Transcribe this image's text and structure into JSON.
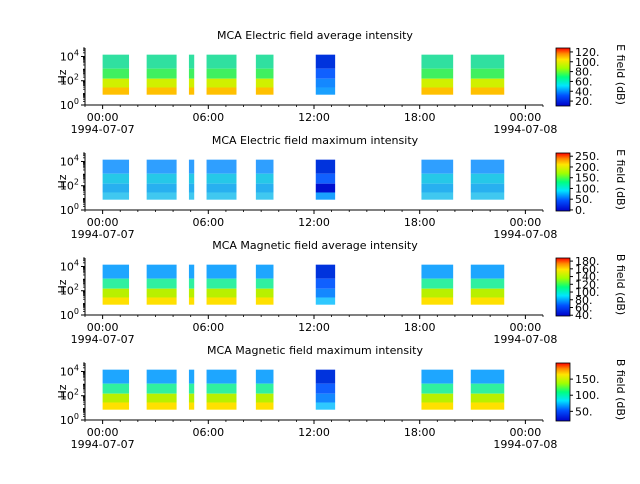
{
  "chart_data": [
    {
      "type": "heatmap",
      "title": "MCA  Electric field average intensity",
      "ylabel": "Hz",
      "yscale": "log",
      "ylim": [
        1,
        50000
      ],
      "y_ticks": [
        {
          "exp": "0"
        },
        {
          "exp": "2"
        },
        {
          "exp": "4"
        }
      ],
      "x_ticks": [
        {
          "hour": 0,
          "label": "00:00",
          "sub": "1994-07-07"
        },
        {
          "hour": 6,
          "label": "06:00",
          "sub": ""
        },
        {
          "hour": 12,
          "label": "12:00",
          "sub": ""
        },
        {
          "hour": 18,
          "label": "18:00",
          "sub": ""
        },
        {
          "hour": 24,
          "label": "00:00",
          "sub": "1994-07-08"
        }
      ],
      "xlim": [
        "1994-07-06T23:00",
        "1994-07-08T01:00"
      ],
      "colorbar": {
        "label": "E field (dB)",
        "range": [
          10,
          128
        ],
        "ticks": [
          "20.",
          "40.",
          "60.",
          "80.",
          "100.",
          "120."
        ],
        "tick_values": [
          20,
          40,
          60,
          80,
          100,
          120
        ]
      },
      "coverage_hours": [
        [
          0,
          1.5
        ],
        [
          2.5,
          4.2
        ],
        [
          4.9,
          5.2
        ],
        [
          5.9,
          7.6
        ],
        [
          8.7,
          9.7
        ],
        [
          12.1,
          13.2
        ],
        [
          18.1,
          19.9
        ],
        [
          20.9,
          22.8
        ]
      ]
    },
    {
      "type": "heatmap",
      "title": "MCA  Electric field maximum intensity",
      "ylabel": "Hz",
      "yscale": "log",
      "ylim": [
        1,
        50000
      ],
      "y_ticks": [
        {
          "exp": "0"
        },
        {
          "exp": "2"
        },
        {
          "exp": "4"
        }
      ],
      "x_ticks": [
        {
          "hour": 0,
          "label": "00:00",
          "sub": "1994-07-07"
        },
        {
          "hour": 6,
          "label": "06:00",
          "sub": ""
        },
        {
          "hour": 12,
          "label": "12:00",
          "sub": ""
        },
        {
          "hour": 18,
          "label": "18:00",
          "sub": ""
        },
        {
          "hour": 24,
          "label": "00:00",
          "sub": "1994-07-08"
        }
      ],
      "xlim": [
        "1994-07-06T23:00",
        "1994-07-08T01:00"
      ],
      "colorbar": {
        "label": "E field (dB)",
        "range": [
          -5,
          265
        ],
        "ticks": [
          "0.",
          "50.",
          "100.",
          "150.",
          "200.",
          "250."
        ],
        "tick_values": [
          0,
          50,
          100,
          150,
          200,
          250
        ]
      },
      "coverage_hours": [
        [
          0,
          1.5
        ],
        [
          2.5,
          4.2
        ],
        [
          4.9,
          5.2
        ],
        [
          5.9,
          7.6
        ],
        [
          8.7,
          9.7
        ],
        [
          12.1,
          13.2
        ],
        [
          18.1,
          19.9
        ],
        [
          20.9,
          22.8
        ]
      ]
    },
    {
      "type": "heatmap",
      "title": "MCA  Magnetic field average intensity",
      "ylabel": "Hz",
      "yscale": "log",
      "ylim": [
        1,
        50000
      ],
      "y_ticks": [
        {
          "exp": "0"
        },
        {
          "exp": "2"
        },
        {
          "exp": "4"
        }
      ],
      "x_ticks": [
        {
          "hour": 0,
          "label": "00:00",
          "sub": "1994-07-07"
        },
        {
          "hour": 6,
          "label": "06:00",
          "sub": ""
        },
        {
          "hour": 12,
          "label": "12:00",
          "sub": ""
        },
        {
          "hour": 18,
          "label": "18:00",
          "sub": ""
        },
        {
          "hour": 24,
          "label": "00:00",
          "sub": "1994-07-08"
        }
      ],
      "xlim": [
        "1994-07-06T23:00",
        "1994-07-08T01:00"
      ],
      "colorbar": {
        "label": "B field (dB)",
        "range": [
          38,
          188
        ],
        "ticks": [
          "40.",
          "60.",
          "80.",
          "100.",
          "120.",
          "140.",
          "160.",
          "180."
        ],
        "tick_values": [
          40,
          60,
          80,
          100,
          120,
          140,
          160,
          180
        ]
      },
      "coverage_hours": [
        [
          0,
          1.5
        ],
        [
          2.5,
          4.2
        ],
        [
          4.9,
          5.2
        ],
        [
          5.9,
          7.6
        ],
        [
          8.7,
          9.7
        ],
        [
          12.1,
          13.2
        ],
        [
          18.1,
          19.9
        ],
        [
          20.9,
          22.8
        ]
      ]
    },
    {
      "type": "heatmap",
      "title": "MCA  Magnetic field maximum intensity",
      "ylabel": "Hz",
      "yscale": "log",
      "ylim": [
        1,
        50000
      ],
      "y_ticks": [
        {
          "exp": "0"
        },
        {
          "exp": "2"
        },
        {
          "exp": "4"
        }
      ],
      "x_ticks": [
        {
          "hour": 0,
          "label": "00:00",
          "sub": "1994-07-07"
        },
        {
          "hour": 6,
          "label": "06:00",
          "sub": ""
        },
        {
          "hour": 12,
          "label": "12:00",
          "sub": ""
        },
        {
          "hour": 18,
          "label": "18:00",
          "sub": ""
        },
        {
          "hour": 24,
          "label": "00:00",
          "sub": "1994-07-08"
        }
      ],
      "xlim": [
        "1994-07-06T23:00",
        "1994-07-08T01:00"
      ],
      "colorbar": {
        "label": "B field (dB)",
        "range": [
          20,
          200
        ],
        "ticks": [
          "50.",
          "100.",
          "150."
        ],
        "tick_values": [
          50,
          100,
          150
        ]
      },
      "coverage_hours": [
        [
          0,
          1.5
        ],
        [
          2.5,
          4.2
        ],
        [
          4.9,
          5.2
        ],
        [
          5.9,
          7.6
        ],
        [
          8.7,
          9.7
        ],
        [
          12.1,
          13.2
        ],
        [
          18.1,
          19.9
        ],
        [
          20.9,
          22.8
        ]
      ]
    }
  ]
}
